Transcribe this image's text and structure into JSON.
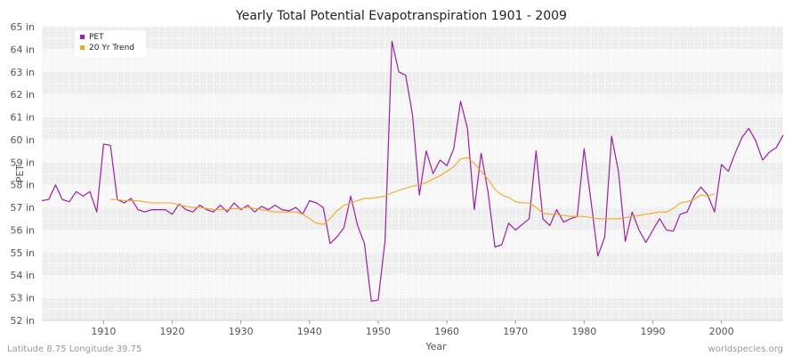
{
  "chart_data": {
    "type": "line",
    "title": "Yearly Total Potential Evapotranspiration 1901 - 2009",
    "xlabel": "Year",
    "ylabel": "PET",
    "xlim": [
      1901,
      2009
    ],
    "ylim": [
      52,
      65
    ],
    "y_unit": "in",
    "x_ticks": [
      1910,
      1920,
      1930,
      1940,
      1950,
      1960,
      1970,
      1980,
      1990,
      2000
    ],
    "y_ticks": [
      52,
      53,
      54,
      55,
      56,
      57,
      58,
      59,
      60,
      61,
      62,
      63,
      64,
      65
    ],
    "y_tick_labels": [
      "52 in",
      "53 in",
      "54 in",
      "55 in",
      "56 in",
      "57 in",
      "58 in",
      "59 in",
      "60 in",
      "61 in",
      "62 in",
      "63 in",
      "64 in",
      "65 in"
    ],
    "grid": true,
    "legend_position": "top-left",
    "series": [
      {
        "name": "PET",
        "color": "#9b1fa3",
        "x": [
          1901,
          1902,
          1903,
          1904,
          1905,
          1906,
          1907,
          1908,
          1909,
          1910,
          1911,
          1912,
          1913,
          1914,
          1915,
          1916,
          1917,
          1918,
          1919,
          1920,
          1921,
          1922,
          1923,
          1924,
          1925,
          1926,
          1927,
          1928,
          1929,
          1930,
          1931,
          1932,
          1933,
          1934,
          1935,
          1936,
          1937,
          1938,
          1939,
          1940,
          1941,
          1942,
          1943,
          1944,
          1945,
          1946,
          1947,
          1948,
          1949,
          1950,
          1951,
          1952,
          1953,
          1954,
          1955,
          1956,
          1957,
          1958,
          1959,
          1960,
          1961,
          1962,
          1963,
          1964,
          1965,
          1966,
          1967,
          1968,
          1969,
          1970,
          1971,
          1972,
          1973,
          1974,
          1975,
          1976,
          1977,
          1978,
          1979,
          1980,
          1981,
          1982,
          1983,
          1984,
          1985,
          1986,
          1987,
          1988,
          1989,
          1990,
          1991,
          1992,
          1993,
          1994,
          1995,
          1996,
          1997,
          1998,
          1999,
          2000,
          2001,
          2002,
          2003,
          2004,
          2005,
          2006,
          2007,
          2008,
          2009
        ],
        "values": [
          57.3,
          57.35,
          58.0,
          57.35,
          57.25,
          57.7,
          57.5,
          57.7,
          56.8,
          59.8,
          59.75,
          57.35,
          57.2,
          57.4,
          56.9,
          56.8,
          56.9,
          56.9,
          56.9,
          56.7,
          57.15,
          56.9,
          56.8,
          57.1,
          56.9,
          56.8,
          57.1,
          56.8,
          57.2,
          56.9,
          57.1,
          56.8,
          57.05,
          56.9,
          57.1,
          56.9,
          56.85,
          57.0,
          56.7,
          57.3,
          57.2,
          57.0,
          55.4,
          55.7,
          56.1,
          57.5,
          56.2,
          55.4,
          52.85,
          52.9,
          55.5,
          64.35,
          63.0,
          62.85,
          61.1,
          57.55,
          59.5,
          58.5,
          59.1,
          58.85,
          59.6,
          61.7,
          60.5,
          56.9,
          59.4,
          57.7,
          55.25,
          55.35,
          56.3,
          56.0,
          56.25,
          56.5,
          59.5,
          56.5,
          56.2,
          56.9,
          56.35,
          56.5,
          56.6,
          59.6,
          57.3,
          54.85,
          55.7,
          60.15,
          58.6,
          55.5,
          56.8,
          56.0,
          55.45,
          56.0,
          56.5,
          56.0,
          55.95,
          56.7,
          56.8,
          57.5,
          57.9,
          57.55,
          56.8,
          58.9,
          58.6,
          59.4,
          60.1,
          60.5,
          59.95,
          59.1,
          59.45,
          59.65,
          60.2
        ]
      },
      {
        "name": "20 Yr Trend",
        "color": "#f5a623",
        "x": [
          1911,
          1912,
          1913,
          1914,
          1915,
          1916,
          1917,
          1918,
          1919,
          1920,
          1921,
          1922,
          1923,
          1924,
          1925,
          1926,
          1927,
          1928,
          1929,
          1930,
          1931,
          1932,
          1933,
          1934,
          1935,
          1936,
          1937,
          1938,
          1939,
          1940,
          1941,
          1942,
          1943,
          1944,
          1945,
          1946,
          1947,
          1948,
          1949,
          1950,
          1951,
          1952,
          1953,
          1954,
          1955,
          1956,
          1957,
          1958,
          1959,
          1960,
          1961,
          1962,
          1963,
          1964,
          1965,
          1966,
          1967,
          1968,
          1969,
          1970,
          1971,
          1972,
          1973,
          1974,
          1975,
          1976,
          1977,
          1978,
          1979,
          1980,
          1981,
          1982,
          1983,
          1984,
          1985,
          1986,
          1987,
          1988,
          1989,
          1990,
          1991,
          1992,
          1993,
          1994,
          1995,
          1996,
          1997,
          1998,
          1999
        ],
        "values": [
          57.35,
          57.35,
          57.3,
          57.3,
          57.3,
          57.25,
          57.2,
          57.2,
          57.2,
          57.2,
          57.1,
          57.05,
          57.0,
          57.0,
          56.95,
          56.9,
          56.9,
          56.9,
          56.95,
          56.95,
          57.0,
          56.95,
          56.9,
          56.85,
          56.8,
          56.8,
          56.8,
          56.8,
          56.7,
          56.5,
          56.3,
          56.25,
          56.5,
          56.85,
          57.1,
          57.2,
          57.3,
          57.4,
          57.4,
          57.45,
          57.5,
          57.65,
          57.75,
          57.85,
          57.95,
          58.0,
          58.1,
          58.25,
          58.4,
          58.6,
          58.8,
          59.15,
          59.2,
          58.95,
          58.6,
          58.25,
          57.8,
          57.55,
          57.45,
          57.25,
          57.2,
          57.2,
          57.0,
          56.75,
          56.7,
          56.7,
          56.65,
          56.6,
          56.6,
          56.6,
          56.55,
          56.5,
          56.5,
          56.5,
          56.5,
          56.55,
          56.6,
          56.65,
          56.7,
          56.75,
          56.8,
          56.8,
          56.95,
          57.2,
          57.25,
          57.35,
          57.55,
          57.5,
          57.6
        ]
      }
    ]
  },
  "footer": {
    "location": "Latitude 8.75 Longitude 39.75",
    "source": "worldspecies.org"
  }
}
